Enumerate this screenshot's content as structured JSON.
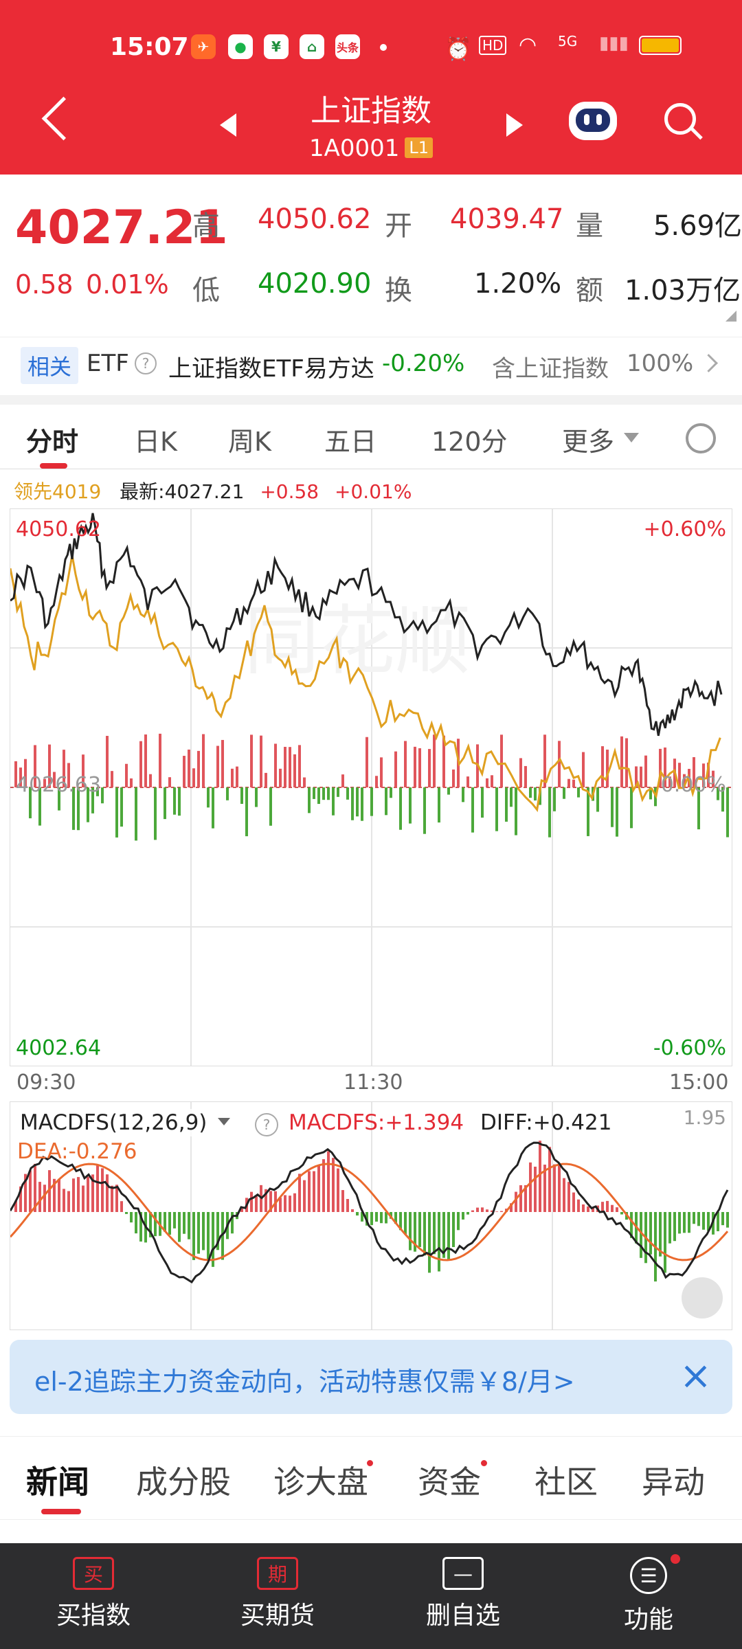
{
  "status_bar": {
    "time": "15:07",
    "app_badge": "头条",
    "network": "5G",
    "hd": "HD"
  },
  "header": {
    "title": "上证指数",
    "code": "1A0001",
    "level": "L1"
  },
  "quote": {
    "price": "4027.21",
    "change": "0.58",
    "change_pct": "0.01%",
    "high_label": "高",
    "high": "4050.62",
    "open_label": "开",
    "open": "4039.47",
    "volume_label": "量",
    "volume": "5.69亿",
    "low_label": "低",
    "low": "4020.90",
    "turnover_label": "换",
    "turnover": "1.20%",
    "amount_label": "额",
    "amount": "1.03万亿"
  },
  "etf": {
    "tag": "相关",
    "type": "ETF",
    "help": "?",
    "name": "上证指数ETF易方达",
    "change": "-0.20%",
    "weight_label": "含上证指数",
    "weight": "100%"
  },
  "tabs": [
    "分时",
    "日K",
    "周K",
    "五日",
    "120分",
    "更多"
  ],
  "chart": {
    "legend_lead": "领先4019",
    "legend_latest": "最新:4027.21",
    "legend_change": "+0.58",
    "legend_pct": "+0.01%",
    "y_top": "4050.62",
    "y_bottom": "4002.64",
    "y_mid": "4026.63",
    "pct_top": "+0.60%",
    "pct_bottom": "-0.60%",
    "pct_mid": "0.00%",
    "x_labels": [
      "09:30",
      "11:30",
      "15:00"
    ],
    "watermark": "同花顺"
  },
  "macd": {
    "name": "MACDFS(12,26,9)",
    "help": "?",
    "macdfs": "MACDFS:+1.394",
    "diff": "DIFF:+0.421",
    "dea": "DEA:-0.276",
    "top": "1.95"
  },
  "ad": {
    "text": "el-2追踪主力资金动向，活动特惠仅需￥8/月>",
    "close": "×"
  },
  "bottom_tabs": [
    "新闻",
    "成分股",
    "诊大盘",
    "资金",
    "社区",
    "异动"
  ],
  "nav": [
    {
      "icon": "买",
      "label": "买指数"
    },
    {
      "icon": "期",
      "label": "买期货"
    },
    {
      "icon": "—",
      "label": "删自选"
    },
    {
      "icon": "☰",
      "label": "功能"
    }
  ],
  "colors": {
    "header": "#ea2b36",
    "up": "#e32b35",
    "down": "#119a1a",
    "avg_line": "#e0a020"
  }
}
